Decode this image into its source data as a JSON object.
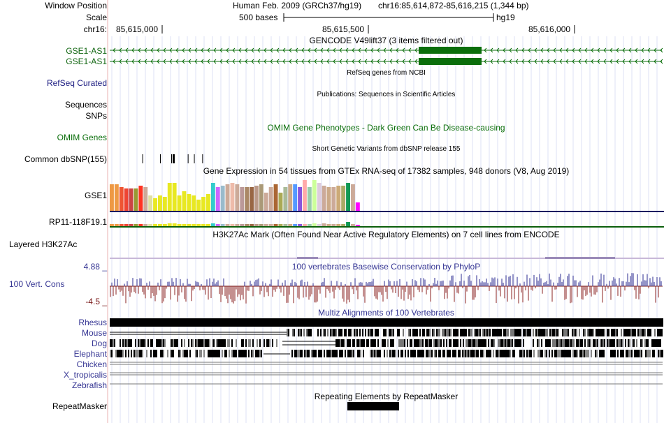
{
  "header": {
    "window_position_label": "Window Position",
    "scale_label": "Scale",
    "chrom_label": "chr16:",
    "assembly": "Human Feb. 2009 (GRCh37/hg19)",
    "position": "chr16:85,614,872-85,616,215 (1,344 bp)",
    "scale_value": "500 bases",
    "scale_db": "hg19",
    "ticks": [
      "85,615,000",
      "85,615,500",
      "85,616,000"
    ]
  },
  "tracks": {
    "gencode_title": "GENCODE V49lift37 (3 items filtered out)",
    "gencode_items": [
      "GSE1-AS1",
      "GSE1-AS1"
    ],
    "refseq_title": "RefSeq genes from NCBI",
    "refseq_label": "RefSeq Curated",
    "pubs_title": "Publications: Sequences in Scientific Articles",
    "sequences_label": "Sequences",
    "snps_label": "SNPs",
    "omim_title": "OMIM Gene Phenotypes - Dark Green Can Be Disease-causing",
    "omim_label": "OMIM Genes",
    "dbsnp_title": "Short Genetic Variants from dbSNP release 155",
    "dbsnp_label": "Common dbSNP(155)",
    "gtex_title": "Gene Expression in 54 tissues from GTEx RNA-seq of 17382 samples, 948 donors (V8, Aug 2019)",
    "gtex_genes": [
      "GSE1",
      "RP11-118F19.1"
    ],
    "h3k27_title": "H3K27Ac Mark (Often Found Near Active Regulatory Elements) on 7 cell lines from ENCODE",
    "h3k27_label": "Layered H3K27Ac",
    "cons_title": "100 vertebrates Basewise Conservation by PhyloP",
    "cons_label": "100 Vert. Cons",
    "cons_max": "4.88 _",
    "cons_min": "-4.5 _",
    "multiz_title": "Multiz Alignments of 100 Vertebrates",
    "species": [
      "Rhesus",
      "Mouse",
      "Dog",
      "Elephant",
      "Chicken",
      "X_tropicalis",
      "Zebrafish"
    ],
    "repeat_title": "Repeating Elements by RepeatMasker",
    "repeat_label": "RepeatMasker"
  },
  "gtex": {
    "colors": [
      "#ee9944",
      "#ee9944",
      "#ee5533",
      "#ee4433",
      "#cc4444",
      "#999933",
      "#ff3322",
      "#ccaa99",
      "#e0e0a0",
      "#e8e822",
      "#e8e822",
      "#e8e822",
      "#e8e822",
      "#e8e822",
      "#e8e822",
      "#e8e822",
      "#e8e822",
      "#e8e822",
      "#e8e822",
      "#e8e822",
      "#e8e822",
      "#33cccc",
      "#cc66ff",
      "#99bbcc",
      "#ccaa99",
      "#eebbaa",
      "#ccaa99",
      "#bb9999",
      "#aa8866",
      "#996644",
      "#bb9988",
      "#aa9977",
      "#ccaa99",
      "#ccaa99",
      "#aa6633",
      "#aaaa55",
      "#aabb99",
      "#ccaa88",
      "#5599ff",
      "#8855dd",
      "#ffaaaa",
      "#99ccaa",
      "#ccff99",
      "#ddccdd",
      "#ccaa99",
      "#ccaa88",
      "#ccaa99",
      "#ccaa77",
      "#aaaa66",
      "#119955",
      "#ccaa99",
      "#ff00ff",
      "#ccccbb",
      "#ddcccc"
    ],
    "gse1_values": [
      38,
      38,
      34,
      32,
      32,
      32,
      36,
      34,
      22,
      18,
      22,
      20,
      40,
      40,
      22,
      28,
      24,
      22,
      16,
      20,
      24,
      40,
      34,
      36,
      38,
      40,
      38,
      34,
      34,
      34,
      36,
      38,
      26,
      34,
      38,
      26,
      34,
      38,
      38,
      34,
      44,
      34,
      44,
      40,
      36,
      34,
      34,
      36,
      36,
      40,
      38,
      12,
      0,
      0
    ],
    "rp11_values": [
      3,
      3,
      3,
      3,
      3,
      3,
      3,
      3,
      3,
      3,
      3,
      3,
      4,
      4,
      3,
      3,
      3,
      3,
      3,
      3,
      3,
      4,
      3,
      3,
      3,
      3,
      3,
      3,
      3,
      3,
      3,
      3,
      3,
      3,
      3,
      3,
      3,
      3,
      3,
      3,
      3,
      3,
      4,
      3,
      4,
      3,
      3,
      3,
      3,
      6,
      3,
      2,
      0,
      0
    ]
  },
  "snps": {
    "positions_bp": [
      85614955,
      85614998,
      85615025,
      85615030,
      85615065,
      85615080,
      85615100
    ]
  }
}
